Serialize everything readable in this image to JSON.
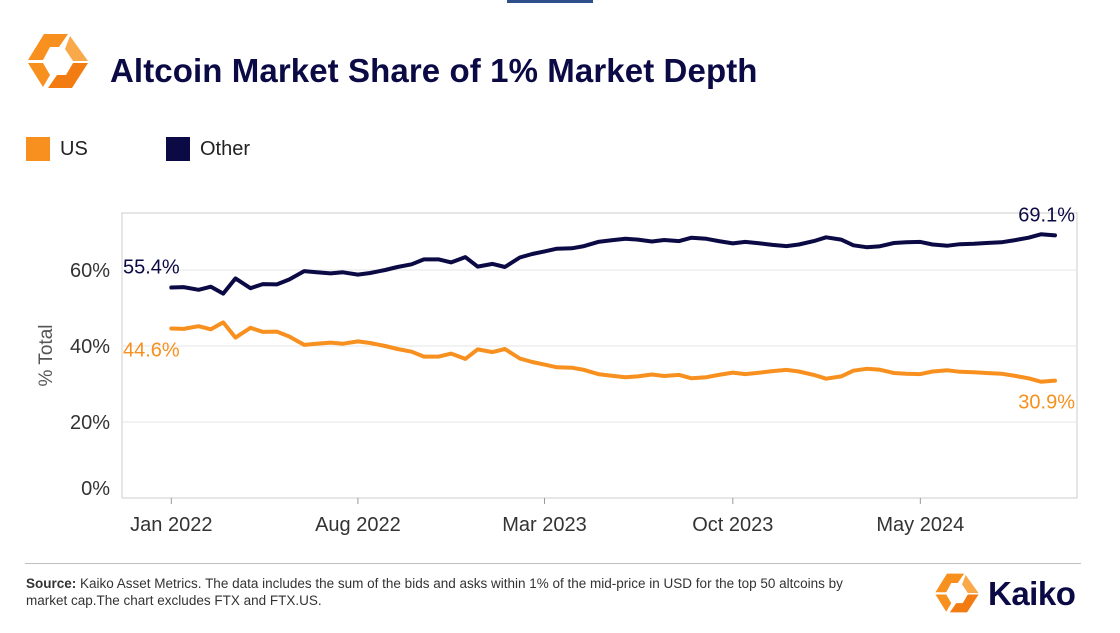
{
  "title": "Altcoin Market Share of 1% Market Depth",
  "legend": [
    {
      "label": "US",
      "color": "#f7901e"
    },
    {
      "label": "Other",
      "color": "#0b0a45"
    }
  ],
  "source": {
    "prefix": "Source:",
    "text": " Kaiko Asset Metrics. The data includes the sum of the bids and asks within 1% of the mid-price in USD for the top 50 altcoins by market cap.The chart excludes FTX and FTX.US."
  },
  "brand": {
    "name": "Kaiko"
  },
  "colors": {
    "us": "#f7901e",
    "other": "#0b0a45",
    "grid": "#e6e6e6",
    "axis": "#cccccc"
  },
  "chart_data": {
    "type": "line",
    "title": "Altcoin Market Share of 1% Market Depth",
    "xlabel": "",
    "ylabel": "% Total",
    "ylim": [
      0,
      75
    ],
    "xlim": [
      "2021-11-06",
      "2024-10-26"
    ],
    "yticks": [
      0,
      20,
      40,
      60
    ],
    "ytick_labels": [
      "0%",
      "20%",
      "40%",
      "60%"
    ],
    "xticks": [
      "2022-01-01",
      "2022-08-01",
      "2023-03-01",
      "2023-10-01",
      "2024-05-01"
    ],
    "xtick_labels": [
      "Jan 2022",
      "Aug 2022",
      "Mar 2023",
      "Oct 2023",
      "May 2024"
    ],
    "dates": [
      "2022-01-01",
      "2022-01-15",
      "2022-02-01",
      "2022-02-15",
      "2022-03-01",
      "2022-03-15",
      "2022-04-01",
      "2022-04-15",
      "2022-05-01",
      "2022-05-15",
      "2022-06-01",
      "2022-06-15",
      "2022-07-01",
      "2022-07-15",
      "2022-08-01",
      "2022-08-15",
      "2022-09-01",
      "2022-09-15",
      "2022-10-01",
      "2022-10-15",
      "2022-11-01",
      "2022-11-15",
      "2022-12-01",
      "2022-12-15",
      "2023-01-01",
      "2023-01-15",
      "2023-02-01",
      "2023-02-15",
      "2023-03-01",
      "2023-03-15",
      "2023-04-01",
      "2023-04-15",
      "2023-05-01",
      "2023-05-15",
      "2023-06-01",
      "2023-06-15",
      "2023-07-01",
      "2023-07-15",
      "2023-08-01",
      "2023-08-15",
      "2023-09-01",
      "2023-09-15",
      "2023-10-01",
      "2023-10-15",
      "2023-11-01",
      "2023-11-15",
      "2023-12-01",
      "2023-12-15",
      "2024-01-01",
      "2024-01-15",
      "2024-02-01",
      "2024-02-15",
      "2024-03-01",
      "2024-03-15",
      "2024-04-01",
      "2024-04-15",
      "2024-05-01",
      "2024-05-15",
      "2024-06-01",
      "2024-06-15",
      "2024-07-01",
      "2024-07-15",
      "2024-08-01",
      "2024-08-15",
      "2024-09-01",
      "2024-09-15",
      "2024-10-01"
    ],
    "series": [
      {
        "name": "Other",
        "color": "#0b0a45",
        "values": [
          55.4,
          55.5,
          54.8,
          55.6,
          53.8,
          57.8,
          55.2,
          56.3,
          56.2,
          57.5,
          59.7,
          59.4,
          59.1,
          59.4,
          58.8,
          59.2,
          60.0,
          60.8,
          61.5,
          62.8,
          62.8,
          62.0,
          63.4,
          60.9,
          61.6,
          60.8,
          63.3,
          64.2,
          64.9,
          65.6,
          65.7,
          66.3,
          67.4,
          67.8,
          68.2,
          68.0,
          67.5,
          67.9,
          67.6,
          68.5,
          68.2,
          67.6,
          67.0,
          67.4,
          67.0,
          66.6,
          66.3,
          66.7,
          67.6,
          68.6,
          68.0,
          66.5,
          66.0,
          66.2,
          67.1,
          67.3,
          67.4,
          66.7,
          66.4,
          66.8,
          66.9,
          67.1,
          67.3,
          67.8,
          68.5,
          69.4,
          69.1
        ]
      },
      {
        "name": "US",
        "color": "#f7901e",
        "values": [
          44.6,
          44.5,
          45.2,
          44.4,
          46.2,
          42.2,
          44.8,
          43.7,
          43.8,
          42.5,
          40.3,
          40.6,
          40.9,
          40.6,
          41.2,
          40.8,
          40.0,
          39.2,
          38.5,
          37.2,
          37.2,
          38.0,
          36.6,
          39.1,
          38.4,
          39.2,
          36.7,
          35.8,
          35.1,
          34.4,
          34.3,
          33.7,
          32.6,
          32.2,
          31.8,
          32.0,
          32.5,
          32.1,
          32.4,
          31.5,
          31.8,
          32.4,
          33.0,
          32.6,
          33.0,
          33.4,
          33.7,
          33.3,
          32.4,
          31.4,
          32.0,
          33.5,
          34.0,
          33.8,
          32.9,
          32.7,
          32.6,
          33.3,
          33.6,
          33.2,
          33.1,
          32.9,
          32.7,
          32.2,
          31.5,
          30.6,
          30.9
        ]
      }
    ],
    "annotations": [
      {
        "text": "55.4%",
        "series": "Other",
        "at": "start"
      },
      {
        "text": "69.1%",
        "series": "Other",
        "at": "end"
      },
      {
        "text": "44.6%",
        "series": "US",
        "at": "start"
      },
      {
        "text": "30.9%",
        "series": "US",
        "at": "end"
      }
    ]
  }
}
